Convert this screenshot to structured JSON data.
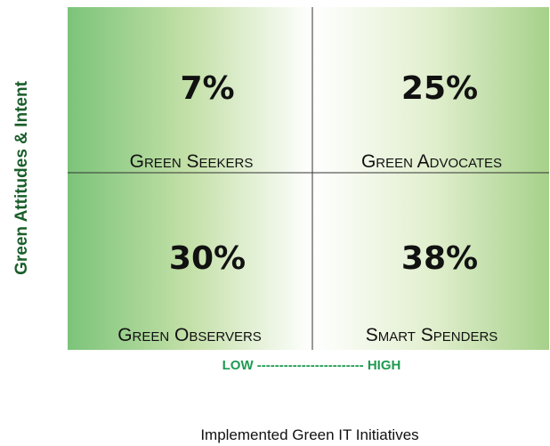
{
  "y_axis_label": "Green Attitudes & Intent",
  "x_scale_label": "LOW ------------------------ HIGH",
  "x_axis_label": "Implemented Green IT Initiatives",
  "quadrants": [
    {
      "value": "7%",
      "label": "Green Seekers"
    },
    {
      "value": "25%",
      "label": "Green Advocates"
    },
    {
      "value": "30%",
      "label": "Green Observers"
    },
    {
      "value": "38%",
      "label": "Smart Spenders"
    }
  ]
}
